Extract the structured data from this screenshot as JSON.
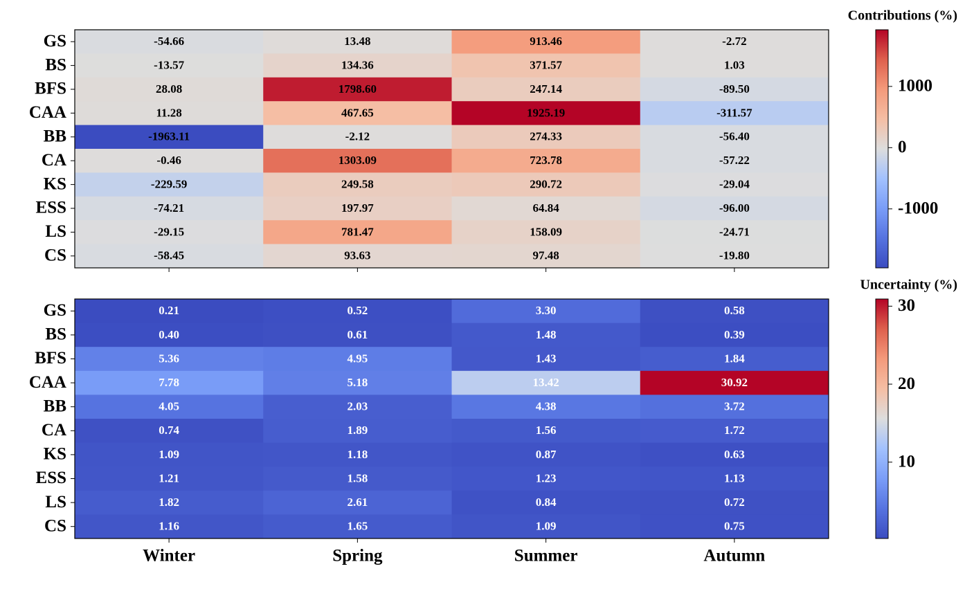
{
  "chart_data": [
    {
      "type": "heatmap",
      "colorbar_label": "Contributions (%)",
      "cmap": "coolwarm",
      "label_color": "#000000",
      "rows": [
        "GS",
        "BS",
        "BFS",
        "CAA",
        "BB",
        "CA",
        "KS",
        "ESS",
        "LS",
        "CS"
      ],
      "values": [
        [
          -54.66,
          13.48,
          913.46,
          -2.72
        ],
        [
          -13.57,
          134.36,
          371.57,
          1.03
        ],
        [
          28.08,
          1798.6,
          247.14,
          -89.5
        ],
        [
          11.28,
          467.65,
          1925.19,
          -311.57
        ],
        [
          -1963.11,
          -2.12,
          274.33,
          -56.4
        ],
        [
          -0.46,
          1303.09,
          723.78,
          -57.22
        ],
        [
          -229.59,
          249.58,
          290.72,
          -29.04
        ],
        [
          -74.21,
          197.97,
          64.84,
          -96
        ],
        [
          -29.15,
          781.47,
          158.09,
          -24.71
        ],
        [
          -58.45,
          93.63,
          97.48,
          -19.8
        ]
      ],
      "value_labels": [
        [
          "-54.66",
          "13.48",
          "913.46",
          "-2.72"
        ],
        [
          "-13.57",
          "134.36",
          "371.57",
          "1.03"
        ],
        [
          "28.08",
          "1798.60",
          "247.14",
          "-89.50"
        ],
        [
          "11.28",
          "467.65",
          "1925.19",
          "-311.57"
        ],
        [
          "-1963.11",
          "-2.12",
          "274.33",
          "-56.40"
        ],
        [
          "-0.46",
          "1303.09",
          "723.78",
          "-57.22"
        ],
        [
          "-229.59",
          "249.58",
          "290.72",
          "-29.04"
        ],
        [
          "-74.21",
          "197.97",
          "64.84",
          "-96.00"
        ],
        [
          "-29.15",
          "781.47",
          "158.09",
          "-24.71"
        ],
        [
          "-58.45",
          "93.63",
          "97.48",
          "-19.80"
        ]
      ],
      "clim": [
        -1963.11,
        1925.19
      ],
      "cticks": [
        -1000,
        0,
        1000
      ]
    },
    {
      "type": "heatmap",
      "colorbar_label": "Uncertainty (%)",
      "cmap": "coolwarm",
      "label_color": "#ffffff",
      "rows": [
        "GS",
        "BS",
        "BFS",
        "CAA",
        "BB",
        "CA",
        "KS",
        "ESS",
        "LS",
        "CS"
      ],
      "columns": [
        "Winter",
        "Spring",
        "Summer",
        "Autumn"
      ],
      "values": [
        [
          0.21,
          0.52,
          3.3,
          0.58
        ],
        [
          0.4,
          0.61,
          1.48,
          0.39
        ],
        [
          5.36,
          4.95,
          1.43,
          1.84
        ],
        [
          7.78,
          5.18,
          13.42,
          30.92
        ],
        [
          4.05,
          2.03,
          4.38,
          3.72
        ],
        [
          0.74,
          1.89,
          1.56,
          1.72
        ],
        [
          1.09,
          1.18,
          0.87,
          0.63
        ],
        [
          1.21,
          1.58,
          1.23,
          1.13
        ],
        [
          1.82,
          2.61,
          0.84,
          0.72
        ],
        [
          1.16,
          1.65,
          1.09,
          0.75
        ]
      ],
      "value_labels": [
        [
          "0.21",
          "0.52",
          "3.30",
          "0.58"
        ],
        [
          "0.40",
          "0.61",
          "1.48",
          "0.39"
        ],
        [
          "5.36",
          "4.95",
          "1.43",
          "1.84"
        ],
        [
          "7.78",
          "5.18",
          "13.42",
          "30.92"
        ],
        [
          "4.05",
          "2.03",
          "4.38",
          "3.72"
        ],
        [
          "0.74",
          "1.89",
          "1.56",
          "1.72"
        ],
        [
          "1.09",
          "1.18",
          "0.87",
          "0.63"
        ],
        [
          "1.21",
          "1.58",
          "1.23",
          "1.13"
        ],
        [
          "1.82",
          "2.61",
          "0.84",
          "0.72"
        ],
        [
          "1.16",
          "1.65",
          "1.09",
          "0.75"
        ]
      ],
      "clim": [
        0.21,
        30.92
      ],
      "cticks": [
        10,
        20,
        30
      ]
    }
  ]
}
